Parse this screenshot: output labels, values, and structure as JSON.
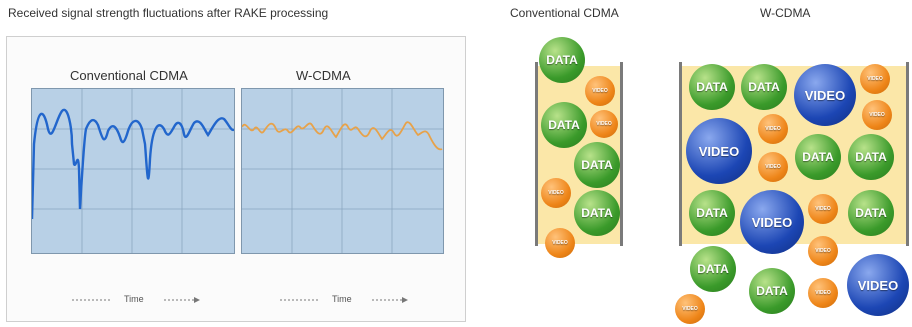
{
  "left": {
    "caption": "Received signal strength fluctuations after RAKE processing",
    "panel_left_title": "Conventional CDMA",
    "panel_right_title": "W-CDMA",
    "time_label": "Time"
  },
  "right": {
    "conv_title": "Conventional CDMA",
    "wcdma_title": "W-CDMA"
  },
  "labels": {
    "data": "DATA",
    "video": "VIDEO"
  },
  "colors": {
    "plot_bg": "#b8d0e6",
    "conv_line": "#2266cc",
    "wcdma_line": "#e7a24a",
    "data": "#3a9a2a",
    "video": "#1c46b4",
    "small": "#ee8518",
    "tube": "#fbe7a8"
  },
  "icons": [
    "data-ball-icon",
    "video-ball-icon",
    "small-video-ball-icon"
  ]
}
